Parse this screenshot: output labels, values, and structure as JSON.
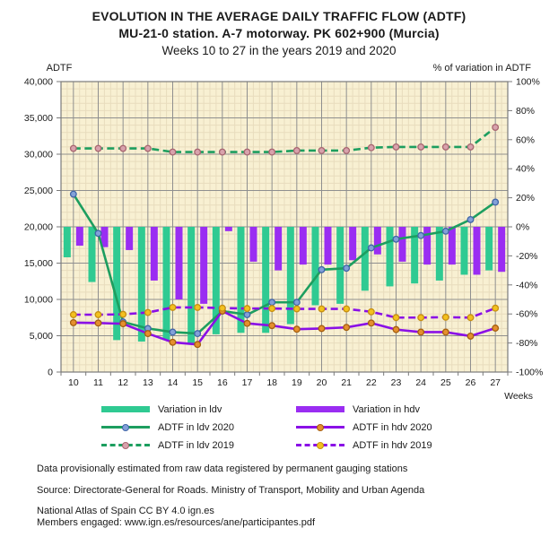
{
  "title": {
    "line1": "EVOLUTION IN THE AVERAGE DAILY TRAFFIC FLOW (ADTF)",
    "line2": "MU-21-0 station. A-7 motorway. PK 602+900 (Murcia)",
    "line3": "Weeks 10 to 27 in the years 2019 and 2020"
  },
  "axes": {
    "left_title": "ADTF",
    "right_title": "% of variation in ADTF",
    "x_title": "Weeks",
    "left_ticks": [
      0,
      5000,
      10000,
      15000,
      20000,
      25000,
      30000,
      35000,
      40000
    ],
    "right_ticks": [
      -100,
      -80,
      -60,
      -40,
      -20,
      0,
      20,
      40,
      60,
      80,
      100
    ]
  },
  "chart_data": {
    "type": "bar+line",
    "categories": [
      10,
      11,
      12,
      13,
      14,
      15,
      16,
      17,
      18,
      19,
      20,
      21,
      22,
      23,
      24,
      25,
      26,
      27
    ],
    "x_label": "Weeks",
    "left_axis_range": [
      0,
      40000
    ],
    "right_axis_range": [
      -100,
      100
    ],
    "grid": true,
    "legend_position": "bottom",
    "series": [
      {
        "name": "Variation in ldv",
        "type": "bar",
        "axis": "right",
        "unit": "%",
        "color": "#2fca92",
        "values": [
          -21,
          -38,
          -78,
          -79,
          -78,
          -81,
          -74,
          -73,
          -73,
          -67,
          -54,
          -53,
          -44,
          -41,
          -39,
          -37,
          -33,
          -30
        ]
      },
      {
        "name": "Variation in hdv",
        "type": "bar",
        "axis": "right",
        "unit": "%",
        "color": "#9a2df2",
        "values": [
          -13,
          -14,
          -16,
          -37,
          -50,
          -53,
          -3,
          -24,
          -30,
          -26,
          -26,
          -23,
          -19,
          -24,
          -26,
          -26,
          -33,
          -31
        ]
      },
      {
        "name": "ADTF in ldv 2020",
        "type": "line",
        "dash": false,
        "axis": "left",
        "color": "#1d9e5f",
        "marker_fill": "#82a0d8",
        "marker_stroke": "#3f64a8",
        "values": [
          24500,
          19100,
          6900,
          6000,
          5500,
          5300,
          8400,
          7900,
          9600,
          9600,
          14100,
          14300,
          17100,
          18300,
          18800,
          19400,
          21000,
          23400
        ]
      },
      {
        "name": "ADTF in hdv 2020",
        "type": "line",
        "dash": false,
        "axis": "left",
        "color": "#8a10e6",
        "marker_fill": "#e58f2e",
        "marker_stroke": "#a65f0e",
        "values": [
          6800,
          6750,
          6650,
          5300,
          4100,
          3800,
          8400,
          6700,
          6400,
          5900,
          6000,
          6150,
          6750,
          5850,
          5500,
          5500,
          4950,
          6050
        ]
      },
      {
        "name": "ADTF in ldv 2019",
        "type": "line",
        "dash": true,
        "axis": "left",
        "color": "#1d9e5f",
        "marker_fill": "#d8a2ac",
        "marker_stroke": "#a86670",
        "values": [
          30800,
          30800,
          30800,
          30800,
          30300,
          30300,
          30300,
          30300,
          30300,
          30500,
          30500,
          30500,
          30900,
          31000,
          31000,
          31000,
          31000,
          33700
        ]
      },
      {
        "name": "ADTF in hdv 2019",
        "type": "line",
        "dash": true,
        "axis": "left",
        "color": "#8a10e6",
        "marker_fill": "#f3c11e",
        "marker_stroke": "#c78f12",
        "values": [
          7900,
          7900,
          7950,
          8200,
          8900,
          8900,
          8800,
          8750,
          8750,
          8700,
          8700,
          8700,
          8300,
          7500,
          7500,
          7550,
          7500,
          8800
        ]
      }
    ]
  },
  "legend": {
    "items": [
      {
        "label": "Variation in ldv",
        "swatch": "bar",
        "color": "#2fca92"
      },
      {
        "label": "Variation in hdv",
        "swatch": "bar",
        "color": "#9a2df2"
      },
      {
        "label": "ADTF in ldv 2020",
        "swatch": "line",
        "dash": false,
        "color": "#1d9e5f",
        "marker_fill": "#82a0d8",
        "marker_stroke": "#3f64a8"
      },
      {
        "label": "ADTF in hdv 2020",
        "swatch": "line",
        "dash": false,
        "color": "#8a10e6",
        "marker_fill": "#e58f2e",
        "marker_stroke": "#a65f0e"
      },
      {
        "label": "ADTF in ldv 2019",
        "swatch": "line",
        "dash": true,
        "color": "#1d9e5f",
        "marker_fill": "#d8a2ac",
        "marker_stroke": "#a86670"
      },
      {
        "label": "ADTF in hdv 2019",
        "swatch": "line",
        "dash": true,
        "color": "#8a10e6",
        "marker_fill": "#f3c11e",
        "marker_stroke": "#c78f12"
      }
    ]
  },
  "footer": {
    "line1": "Data provisionally estimated from raw data registered by permanent gauging stations",
    "line2": "Source: Directorate-General for Roads. Ministry of Transport, Mobility and Urban Agenda",
    "line3": "National Atlas of Spain CC BY 4.0 ign.es",
    "line4": "Members engaged: www.ign.es/resources/ane/participantes.pdf"
  },
  "colors": {
    "page_bg": "#ffffff",
    "plot_bg": "#f8f0d2",
    "grid_minor": "#e8dcbd",
    "grid_major": "#8f8f8f",
    "frame": "#7a7a7a",
    "text": "#1a1a1a"
  }
}
